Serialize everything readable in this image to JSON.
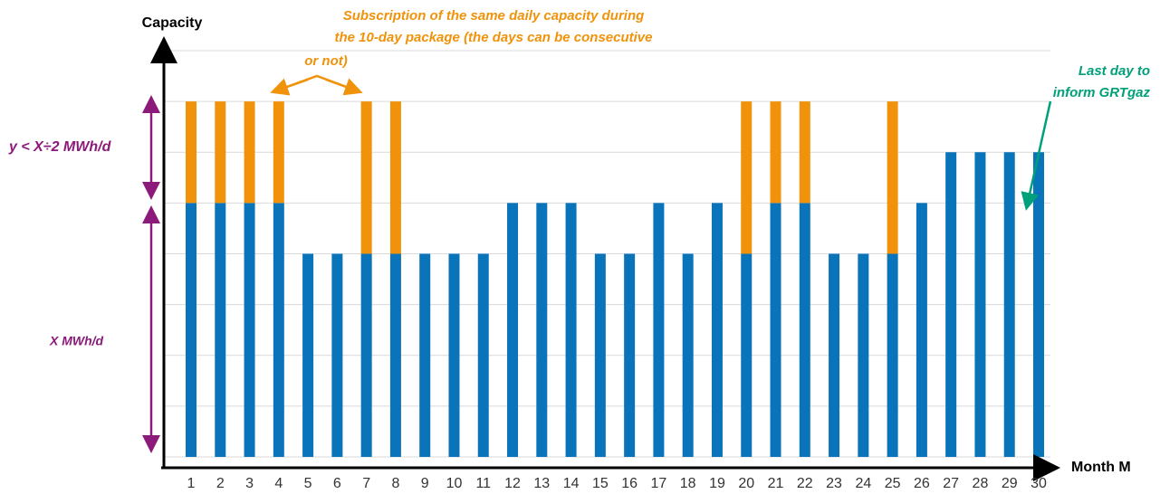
{
  "chart_data": {
    "type": "bar",
    "stacked": true,
    "y_label": "Capacity",
    "x_label": "Month M",
    "categories": [
      "1",
      "2",
      "3",
      "4",
      "5",
      "6",
      "7",
      "8",
      "9",
      "10",
      "11",
      "12",
      "13",
      "14",
      "15",
      "16",
      "17",
      "18",
      "19",
      "20",
      "21",
      "22",
      "23",
      "24",
      "25",
      "26",
      "27",
      "28",
      "29",
      "30"
    ],
    "series": [
      {
        "color": "#0a74ba",
        "values": [
          5,
          5,
          5,
          5,
          4,
          4,
          4,
          4,
          4,
          4,
          4,
          5,
          5,
          5,
          4,
          4,
          5,
          4,
          5,
          4,
          5,
          5,
          4,
          4,
          4,
          5,
          6,
          6,
          6,
          6
        ]
      },
      {
        "color": "#f0930b",
        "values": [
          2,
          2,
          2,
          2,
          0,
          0,
          3,
          3,
          0,
          0,
          0,
          0,
          0,
          0,
          0,
          0,
          0,
          0,
          0,
          3,
          2,
          2,
          0,
          0,
          3,
          0,
          0,
          0,
          0,
          0
        ]
      }
    ],
    "ylim": [
      0,
      8
    ],
    "yticks": [
      0,
      1,
      2,
      3,
      4,
      5,
      6,
      7,
      8
    ],
    "grid": true,
    "annotations": {
      "package": [
        "Subscription of the same daily capacity during",
        "the 10-day package (the days can be consecutive",
        "or not)"
      ],
      "last_day": [
        "Last day to",
        "inform GRTgaz"
      ],
      "extra": "y < X÷2 MWh/d",
      "base": "X MWh/d"
    }
  }
}
